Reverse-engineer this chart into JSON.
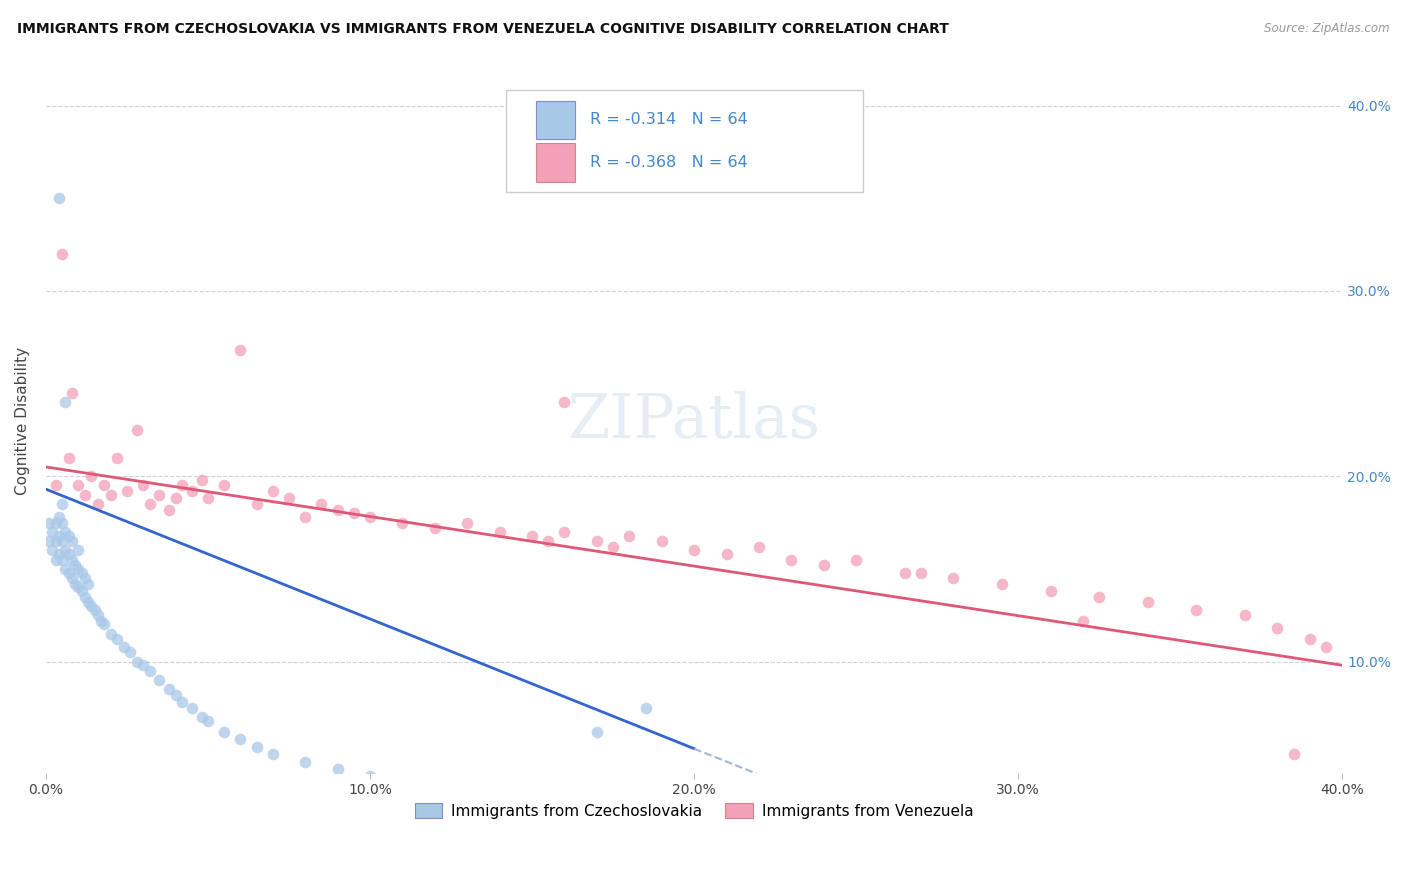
{
  "title": "IMMIGRANTS FROM CZECHOSLOVAKIA VS IMMIGRANTS FROM VENEZUELA COGNITIVE DISABILITY CORRELATION CHART",
  "source": "Source: ZipAtlas.com",
  "ylabel": "Cognitive Disability",
  "legend_label1": "Immigrants from Czechoslovakia",
  "legend_label2": "Immigrants from Venezuela",
  "r1": "-0.314",
  "r2": "-0.368",
  "n1": "64",
  "n2": "64",
  "xmin": 0.0,
  "xmax": 0.4,
  "ymin": 0.04,
  "ymax": 0.42,
  "color_czech": "#a8c8e8",
  "color_venezuela": "#f4a0b8",
  "color_line_czech": "#3366cc",
  "color_line_venezuela": "#e05878",
  "color_line_czech_dashed": "#a0b8d8",
  "background_color": "#ffffff",
  "grid_color": "#d0d0e0",
  "right_axis_color": "#4488cc",
  "title_fontsize": 10.5,
  "scatter_size": 70,
  "scatter_alpha": 0.75,
  "czech_line_end": 0.2,
  "line_y_czech_start": 0.193,
  "line_y_czech_end_at_20": 0.053,
  "line_y_ven_start": 0.205,
  "line_y_ven_end": 0.098,
  "scatter_czech_x": [
    0.001,
    0.001,
    0.002,
    0.002,
    0.003,
    0.003,
    0.003,
    0.004,
    0.004,
    0.004,
    0.005,
    0.005,
    0.005,
    0.005,
    0.006,
    0.006,
    0.006,
    0.007,
    0.007,
    0.007,
    0.008,
    0.008,
    0.008,
    0.009,
    0.009,
    0.01,
    0.01,
    0.01,
    0.011,
    0.011,
    0.012,
    0.012,
    0.013,
    0.013,
    0.014,
    0.015,
    0.016,
    0.017,
    0.018,
    0.02,
    0.022,
    0.024,
    0.026,
    0.028,
    0.03,
    0.032,
    0.035,
    0.038,
    0.04,
    0.042,
    0.045,
    0.048,
    0.05,
    0.055,
    0.06,
    0.065,
    0.07,
    0.08,
    0.09,
    0.1,
    0.004,
    0.006,
    0.185,
    0.17
  ],
  "scatter_czech_y": [
    0.165,
    0.175,
    0.16,
    0.17,
    0.155,
    0.165,
    0.175,
    0.158,
    0.168,
    0.178,
    0.155,
    0.165,
    0.175,
    0.185,
    0.15,
    0.16,
    0.17,
    0.148,
    0.158,
    0.168,
    0.145,
    0.155,
    0.165,
    0.142,
    0.152,
    0.14,
    0.15,
    0.16,
    0.138,
    0.148,
    0.135,
    0.145,
    0.132,
    0.142,
    0.13,
    0.128,
    0.125,
    0.122,
    0.12,
    0.115,
    0.112,
    0.108,
    0.105,
    0.1,
    0.098,
    0.095,
    0.09,
    0.085,
    0.082,
    0.078,
    0.075,
    0.07,
    0.068,
    0.062,
    0.058,
    0.054,
    0.05,
    0.046,
    0.042,
    0.038,
    0.35,
    0.24,
    0.075,
    0.062
  ],
  "scatter_venezuela_x": [
    0.003,
    0.005,
    0.007,
    0.008,
    0.01,
    0.012,
    0.014,
    0.016,
    0.018,
    0.02,
    0.022,
    0.025,
    0.028,
    0.03,
    0.032,
    0.035,
    0.038,
    0.04,
    0.042,
    0.045,
    0.048,
    0.05,
    0.055,
    0.06,
    0.065,
    0.07,
    0.075,
    0.08,
    0.085,
    0.09,
    0.095,
    0.1,
    0.11,
    0.12,
    0.13,
    0.14,
    0.15,
    0.155,
    0.16,
    0.17,
    0.175,
    0.18,
    0.19,
    0.2,
    0.21,
    0.22,
    0.23,
    0.24,
    0.25,
    0.265,
    0.28,
    0.295,
    0.31,
    0.325,
    0.34,
    0.355,
    0.37,
    0.38,
    0.39,
    0.395,
    0.16,
    0.27,
    0.32,
    0.385
  ],
  "scatter_venezuela_y": [
    0.195,
    0.32,
    0.21,
    0.245,
    0.195,
    0.19,
    0.2,
    0.185,
    0.195,
    0.19,
    0.21,
    0.192,
    0.225,
    0.195,
    0.185,
    0.19,
    0.182,
    0.188,
    0.195,
    0.192,
    0.198,
    0.188,
    0.195,
    0.268,
    0.185,
    0.192,
    0.188,
    0.178,
    0.185,
    0.182,
    0.18,
    0.178,
    0.175,
    0.172,
    0.175,
    0.17,
    0.168,
    0.165,
    0.17,
    0.165,
    0.162,
    0.168,
    0.165,
    0.16,
    0.158,
    0.162,
    0.155,
    0.152,
    0.155,
    0.148,
    0.145,
    0.142,
    0.138,
    0.135,
    0.132,
    0.128,
    0.125,
    0.118,
    0.112,
    0.108,
    0.24,
    0.148,
    0.122,
    0.05
  ]
}
